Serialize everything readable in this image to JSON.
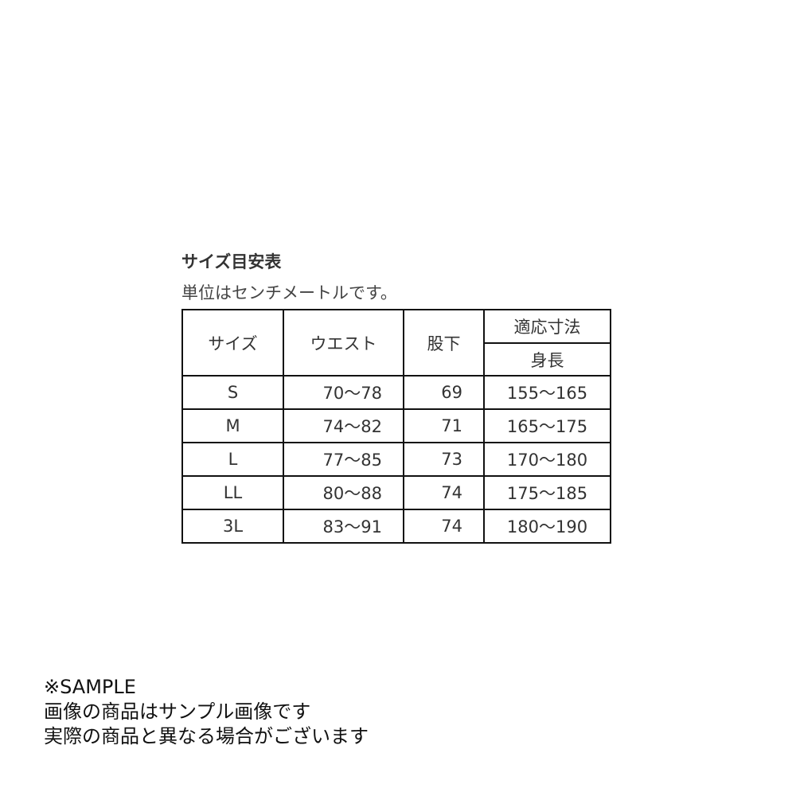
{
  "title": "サイズ目安表",
  "subtitle": "単位はセンチメートルです。",
  "table": {
    "headers": {
      "size": "サイズ",
      "waist": "ウエスト",
      "inseam": "股下",
      "fit_group": "適応寸法",
      "height": "身長"
    },
    "rows": [
      {
        "size": "S",
        "waist": "70～78",
        "inseam": "69",
        "height": "155～165"
      },
      {
        "size": "M",
        "waist": "74～82",
        "inseam": "71",
        "height": "165～175"
      },
      {
        "size": "L",
        "waist": "77～85",
        "inseam": "73",
        "height": "170～180"
      },
      {
        "size": "LL",
        "waist": "80～88",
        "inseam": "74",
        "height": "175～185"
      },
      {
        "size": "3L",
        "waist": "83～91",
        "inseam": "74",
        "height": "180～190"
      }
    ]
  },
  "note": {
    "line1": "※SAMPLE",
    "line2": "画像の商品はサンプル画像です",
    "line3": "実際の商品と異なる場合がございます"
  }
}
